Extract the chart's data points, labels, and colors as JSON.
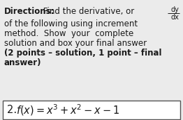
{
  "bg_color": "#ebebeb",
  "text_color": "#1a1a1a",
  "box_bg": "#ffffff",
  "box_edge": "#555555",
  "font_size_main": 8.5,
  "font_size_formula": 10.5,
  "line1_bold": "Directions:",
  "line1_rest": " Find the derivative, or",
  "line2": "of the following using increment",
  "line3": "method.  Show  your  complete",
  "line4": "solution and box your final answer",
  "line5": "(2 points – solution, 1 point – final",
  "line6": "answer)",
  "formula": "2. $f(x) = x^3 + x^2 - x - 1$"
}
